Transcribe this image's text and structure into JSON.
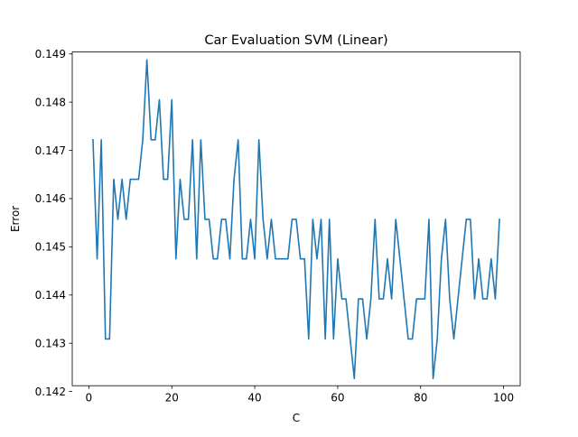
{
  "chart_data": {
    "type": "line",
    "title": "Car Evaluation SVM (Linear)",
    "xlabel": "C",
    "ylabel": "Error",
    "xlim": [
      -4,
      104
    ],
    "ylim": [
      0.14212,
      0.14904
    ],
    "grid": false,
    "line_color": "#1f77b4",
    "x_ticks": [
      0,
      20,
      40,
      60,
      80,
      100
    ],
    "y_ticks": [
      0.142,
      0.143,
      0.144,
      0.145,
      0.146,
      0.147,
      0.148,
      0.149
    ],
    "x_tick_labels": [
      "0",
      "20",
      "40",
      "60",
      "80",
      "100"
    ],
    "y_tick_labels": [
      "0.142",
      "0.143",
      "0.144",
      "0.145",
      "0.146",
      "0.147",
      "0.148",
      "0.149"
    ],
    "series": [
      {
        "x": [
          1,
          2,
          3,
          4,
          5,
          6,
          7,
          8,
          9,
          10,
          11,
          12,
          13,
          14,
          15,
          16,
          17,
          18,
          19,
          20,
          21,
          22,
          23,
          24,
          25,
          26,
          27,
          28,
          29,
          30,
          31,
          32,
          33,
          34,
          35,
          36,
          37,
          38,
          39,
          40,
          41,
          42,
          43,
          44,
          45,
          46,
          47,
          48,
          49,
          50,
          51,
          52,
          53,
          54,
          55,
          56,
          57,
          58,
          59,
          60,
          61,
          62,
          63,
          64,
          65,
          66,
          67,
          68,
          69,
          70,
          71,
          72,
          73,
          74,
          75,
          76,
          77,
          78,
          79,
          80,
          81,
          82,
          83,
          84,
          85,
          86,
          87,
          88,
          89,
          90,
          91,
          92,
          93,
          94,
          95,
          96,
          97,
          98,
          99
        ],
        "values": [
          0.14722,
          0.14475,
          0.14722,
          0.14309,
          0.14309,
          0.1464,
          0.14557,
          0.1464,
          0.14557,
          0.1464,
          0.1464,
          0.1464,
          0.14722,
          0.14888,
          0.14722,
          0.14722,
          0.14805,
          0.1464,
          0.1464,
          0.14805,
          0.14475,
          0.1464,
          0.14557,
          0.14557,
          0.14722,
          0.14475,
          0.14722,
          0.14557,
          0.14557,
          0.14475,
          0.14475,
          0.14557,
          0.14557,
          0.14475,
          0.1464,
          0.14722,
          0.14475,
          0.14475,
          0.14557,
          0.14475,
          0.14722,
          0.14557,
          0.14475,
          0.14557,
          0.14475,
          0.14475,
          0.14475,
          0.14475,
          0.14557,
          0.14557,
          0.14475,
          0.14475,
          0.14309,
          0.14557,
          0.14475,
          0.14557,
          0.14309,
          0.14557,
          0.14309,
          0.14475,
          0.14392,
          0.14392,
          0.14309,
          0.14227,
          0.14392,
          0.14392,
          0.14309,
          0.14392,
          0.14557,
          0.14392,
          0.14392,
          0.14475,
          0.14392,
          0.14557,
          0.14475,
          0.14392,
          0.14309,
          0.14309,
          0.14392,
          0.14392,
          0.14392,
          0.14557,
          0.14227,
          0.14309,
          0.14475,
          0.14557,
          0.14392,
          0.14309,
          0.14392,
          0.14475,
          0.14557,
          0.14557,
          0.14392,
          0.14475,
          0.14392,
          0.14392,
          0.14475,
          0.14392,
          0.14557
        ]
      }
    ]
  }
}
